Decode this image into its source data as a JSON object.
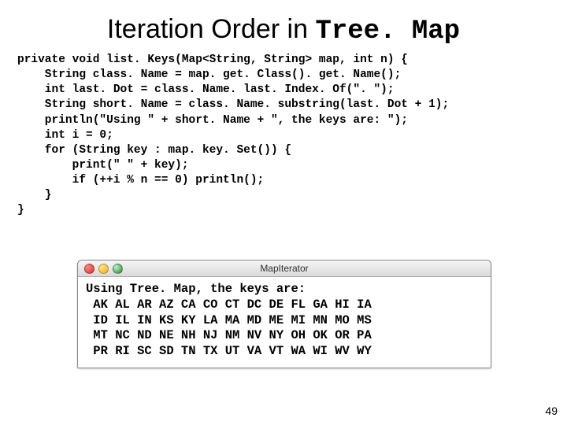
{
  "title": {
    "prefix": "Iteration Order in ",
    "mono": "Tree. Map"
  },
  "code": "private void list. Keys(Map<String, String> map, int n) {\n    String class. Name = map. get. Class(). get. Name();\n    int last. Dot = class. Name. last. Index. Of(\". \");\n    String short. Name = class. Name. substring(last. Dot + 1);\n    println(\"Using \" + short. Name + \", the keys are: \");\n    int i = 0;\n    for (String key : map. key. Set()) {\n        print(\" \" + key);\n        if (++i % n == 0) println();\n    }\n}",
  "window": {
    "title": "MapIterator",
    "output": "Using Tree. Map, the keys are:\n AK AL AR AZ CA CO CT DC DE FL GA HI IA\n ID IL IN KS KY LA MA MD ME MI MN MO MS\n MT NC ND NE NH NJ NM NV NY OH OK OR PA\n PR RI SC SD TN TX UT VA VT WA WI WV WY"
  },
  "page_number": "49",
  "colors": {
    "background": "#ffffff",
    "text": "#000000",
    "titlebar_top": "#f6f6f6",
    "titlebar_bottom": "#d9d9d9",
    "button_red": "#d32f2f",
    "button_yellow": "#f9a825",
    "button_green": "#2e7d32"
  }
}
